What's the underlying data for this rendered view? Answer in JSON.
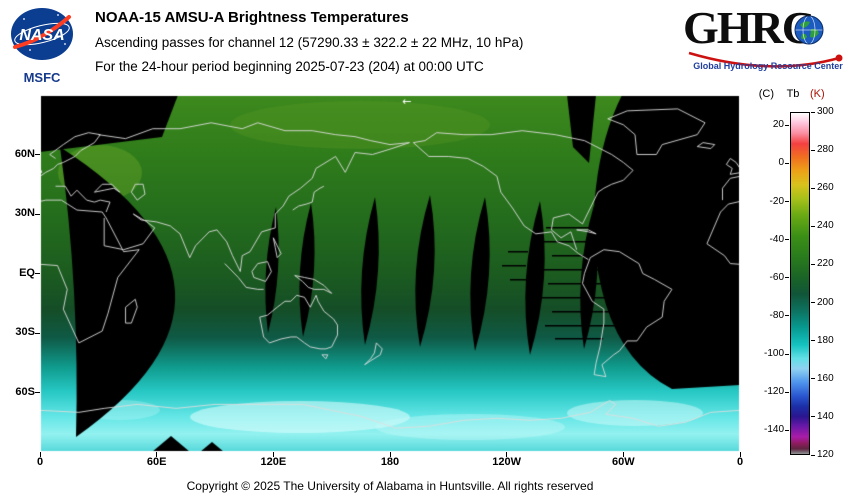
{
  "header": {
    "nasa": {
      "insignia_text": "NASA",
      "center_label": "MSFC"
    },
    "title": "NOAA-15 AMSU-A Brightness Temperatures",
    "line2": "Ascending passes for channel 12 (57290.33 ± 322.2 ± 22 MHz, 10 hPa)",
    "line3": "For the 24-hour period beginning 2025-07-23 (204) at 00:00 UTC",
    "ghrc": {
      "letters": "GHR",
      "letter_c": "C",
      "tagline": "Global Hydrology Resource Center"
    }
  },
  "map": {
    "overlap_arrow": "←",
    "x_tick_labels": [
      "0",
      "60E",
      "120E",
      "180",
      "120W",
      "60W",
      "0"
    ],
    "x_tick_lons": [
      0,
      60,
      120,
      180,
      240,
      300,
      360
    ],
    "y_tick_labels": [
      "60N",
      "30N",
      "EQ",
      "30S",
      "60S"
    ],
    "y_tick_lats": [
      60,
      30,
      0,
      -30,
      -60
    ],
    "background_color": "#000000",
    "coastline_color": "rgba(222,222,222,0.9)",
    "field_gradient": [
      [
        0,
        "#3e8a1e"
      ],
      [
        0.17,
        "#2f7c1b"
      ],
      [
        0.33,
        "#256e1d"
      ],
      [
        0.5,
        "#1c5c20"
      ],
      [
        0.6,
        "#154e27"
      ],
      [
        0.68,
        "#0f5a46"
      ],
      [
        0.76,
        "#0f9a8c"
      ],
      [
        0.83,
        "#27c8c4"
      ],
      [
        0.9,
        "#63e6e6"
      ],
      [
        0.95,
        "#93f2f0"
      ],
      [
        1,
        "#55d8da"
      ]
    ]
  },
  "colorbar": {
    "title_left": "(C)",
    "title_center": "Tb",
    "title_right": "(K)",
    "title_right_color": "#aa1100",
    "kelvin_min": 120,
    "kelvin_max": 300,
    "left_labels_c": [
      20,
      0,
      -20,
      -40,
      -60,
      -80,
      -100,
      -120,
      -140
    ],
    "right_labels_k": [
      300,
      280,
      260,
      240,
      220,
      200,
      180,
      160,
      140,
      120
    ],
    "palette": [
      [
        0,
        "#ffffff"
      ],
      [
        0.03,
        "#ffc4da"
      ],
      [
        0.06,
        "#fb8da0"
      ],
      [
        0.09,
        "#f44040"
      ],
      [
        0.13,
        "#f07020"
      ],
      [
        0.17,
        "#eda118"
      ],
      [
        0.21,
        "#d8c21c"
      ],
      [
        0.25,
        "#a8c01a"
      ],
      [
        0.3,
        "#6aaa14"
      ],
      [
        0.36,
        "#3c9016"
      ],
      [
        0.42,
        "#2a7c1c"
      ],
      [
        0.48,
        "#1b6526"
      ],
      [
        0.53,
        "#115538"
      ],
      [
        0.58,
        "#0d7260"
      ],
      [
        0.63,
        "#079a90"
      ],
      [
        0.68,
        "#15c2c0"
      ],
      [
        0.72,
        "#62e0e6"
      ],
      [
        0.75,
        "#8fd2f2"
      ],
      [
        0.79,
        "#4e94ec"
      ],
      [
        0.83,
        "#2a56d0"
      ],
      [
        0.86,
        "#1b2fa8"
      ],
      [
        0.89,
        "#2a1690"
      ],
      [
        0.92,
        "#6c18a8"
      ],
      [
        0.95,
        "#aa1ca8"
      ],
      [
        0.97,
        "#8c1c5c"
      ],
      [
        0.985,
        "#5e2440"
      ],
      [
        1,
        "#8e9494"
      ]
    ]
  },
  "footer": {
    "copyright": "Copyright © 2025 The University of Alabama in Huntsville. All rights reserved"
  }
}
